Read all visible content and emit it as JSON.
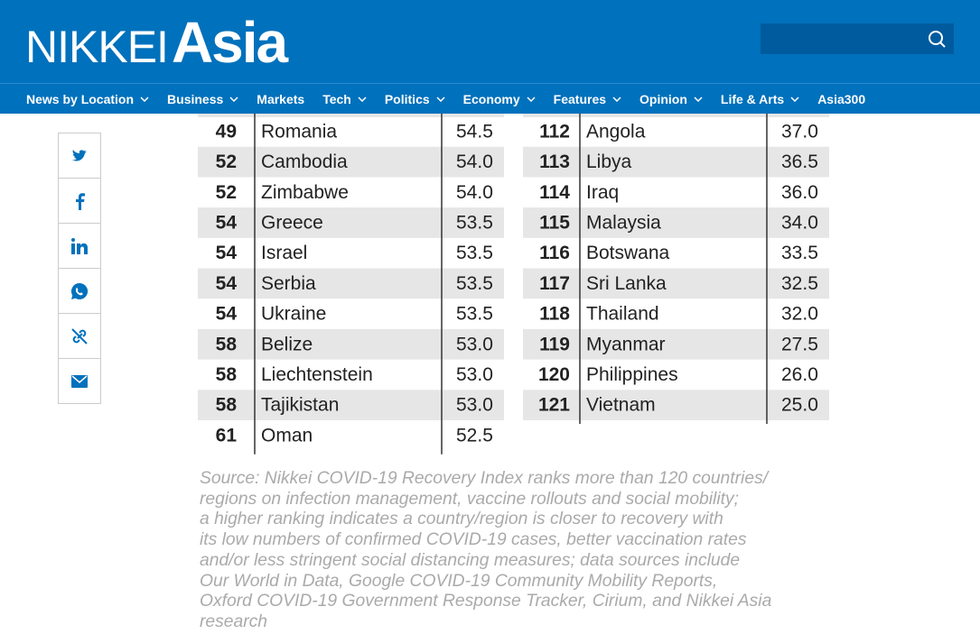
{
  "header": {
    "logo": {
      "brand": "NIKKEI",
      "sub": "Asia"
    },
    "nav": [
      "News by Location",
      "Business",
      "Markets",
      "Tech",
      "Politics",
      "Economy",
      "Features",
      "Opinion",
      "Life & Arts",
      "Asia300"
    ]
  },
  "table": {
    "left": [
      [
        "49",
        "Romania",
        "54.5"
      ],
      [
        "52",
        "Cambodia",
        "54.0"
      ],
      [
        "52",
        "Zimbabwe",
        "54.0"
      ],
      [
        "54",
        "Greece",
        "53.5"
      ],
      [
        "54",
        "Israel",
        "53.5"
      ],
      [
        "54",
        "Serbia",
        "53.5"
      ],
      [
        "54",
        "Ukraine",
        "53.5"
      ],
      [
        "58",
        "Belize",
        "53.0"
      ],
      [
        "58",
        "Liechtenstein",
        "53.0"
      ],
      [
        "58",
        "Tajikistan",
        "53.0"
      ],
      [
        "61",
        "Oman",
        "52.5"
      ]
    ],
    "right": [
      [
        "112",
        "Angola",
        "37.0"
      ],
      [
        "113",
        "Libya",
        "36.5"
      ],
      [
        "114",
        "Iraq",
        "36.0"
      ],
      [
        "115",
        "Malaysia",
        "34.0"
      ],
      [
        "116",
        "Botswana",
        "33.5"
      ],
      [
        "117",
        "Sri Lanka",
        "32.5"
      ],
      [
        "118",
        "Thailand",
        "32.0"
      ],
      [
        "119",
        "Myanmar",
        "27.5"
      ],
      [
        "120",
        "Philippines",
        "26.0"
      ],
      [
        "121",
        "Vietnam",
        "25.0"
      ]
    ]
  },
  "source": [
    "Source: Nikkei COVID-19 Recovery Index ranks more than 120 countries/",
    "regions on infection management, vaccine rollouts and social mobility;",
    "a higher ranking indicates a country/region is closer to recovery with",
    "its low numbers of confirmed COVID-19 cases, better vaccination rates",
    "and/or less stringent social distancing measures; data sources include",
    "Our World in Data, Google COVID-19 Community Mobility Reports,",
    "Oxford COVID-19 Government Response Tracker, Cirium, and Nikkei Asia",
    "research"
  ]
}
